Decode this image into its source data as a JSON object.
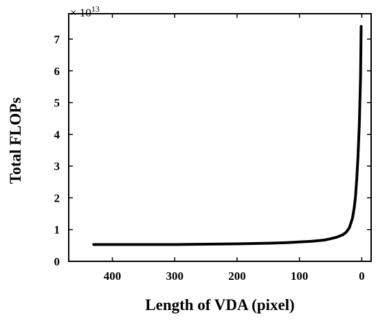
{
  "chart_data": {
    "type": "line",
    "title": "",
    "xlabel": "Length of VDA (pixel)",
    "ylabel": "Total FLOPs",
    "y_multiplier_label": "× 10",
    "y_multiplier_exponent": "13",
    "xlim": [
      470,
      -15
    ],
    "ylim": [
      0,
      7.8
    ],
    "x_reversed": true,
    "grid": false,
    "legend": "none",
    "x_ticks": [
      400,
      300,
      200,
      100,
      0
    ],
    "y_ticks": [
      0,
      1,
      2,
      3,
      4,
      5,
      6,
      7
    ],
    "series": [
      {
        "line_color": "#000000",
        "x": [
          430,
          400,
          350,
          300,
          250,
          200,
          150,
          120,
          100,
          80,
          60,
          50,
          40,
          30,
          25,
          20,
          15,
          12,
          10,
          8,
          6,
          4,
          2,
          1
        ],
        "y": [
          0.53,
          0.53,
          0.53,
          0.53,
          0.54,
          0.55,
          0.57,
          0.59,
          0.61,
          0.63,
          0.67,
          0.71,
          0.76,
          0.84,
          0.92,
          1.05,
          1.35,
          1.7,
          2.05,
          2.6,
          3.3,
          4.3,
          5.8,
          7.4
        ]
      }
    ]
  }
}
